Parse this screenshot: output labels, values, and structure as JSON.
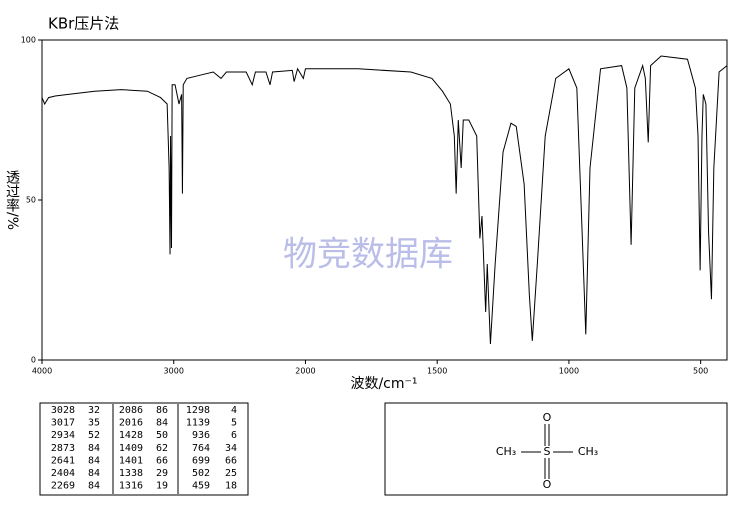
{
  "chart_data": {
    "type": "line",
    "title": "KBr压片法",
    "xlabel": "波数/cm⁻¹",
    "ylabel": "透过率/%",
    "watermark": "物竞数据库",
    "color": "#000000",
    "xlim": [
      4000,
      400
    ],
    "xticks": [
      4000,
      3000,
      2000,
      1500,
      1000,
      500
    ],
    "ylim": [
      0,
      100
    ],
    "yticks": [
      0,
      50,
      100
    ],
    "grid": false,
    "x": [
      4000,
      3980,
      3950,
      3900,
      3800,
      3600,
      3400,
      3200,
      3100,
      3050,
      3035,
      3028,
      3024,
      3017,
      3012,
      2990,
      2960,
      2940,
      2934,
      2928,
      2900,
      2800,
      2700,
      2641,
      2600,
      2450,
      2404,
      2380,
      2300,
      2269,
      2250,
      2100,
      2086,
      2060,
      2016,
      2000,
      1800,
      1600,
      1520,
      1480,
      1450,
      1435,
      1428,
      1420,
      1409,
      1401,
      1380,
      1350,
      1338,
      1330,
      1316,
      1310,
      1298,
      1280,
      1250,
      1220,
      1200,
      1170,
      1150,
      1139,
      1120,
      1090,
      1050,
      1000,
      970,
      950,
      936,
      920,
      880,
      800,
      780,
      764,
      750,
      720,
      710,
      699,
      690,
      650,
      550,
      520,
      510,
      502,
      495,
      490,
      480,
      470,
      459,
      450,
      430,
      400
    ],
    "values": [
      82,
      80,
      82,
      82.5,
      83,
      84,
      84.5,
      84,
      82,
      80,
      60,
      33,
      70,
      35,
      86,
      86,
      80,
      83,
      52,
      86,
      88,
      89,
      90,
      88,
      90,
      90,
      86,
      90,
      90,
      86,
      90,
      90.5,
      87,
      91,
      88,
      91,
      91,
      90,
      88,
      84,
      80,
      70,
      52,
      75,
      60,
      75,
      75,
      70,
      38,
      45,
      15,
      30,
      5,
      30,
      65,
      74,
      73,
      55,
      20,
      6,
      30,
      70,
      88,
      91,
      85,
      40,
      8,
      60,
      91,
      92,
      85,
      36,
      85,
      92,
      88,
      68,
      92,
      95,
      94,
      85,
      70,
      28,
      70,
      83,
      80,
      40,
      19,
      60,
      90,
      92
    ]
  },
  "peak_table": [
    [
      3028,
      32
    ],
    [
      3017,
      35
    ],
    [
      2934,
      52
    ],
    [
      2873,
      84
    ],
    [
      2641,
      84
    ],
    [
      2404,
      84
    ],
    [
      2269,
      84
    ],
    [
      2086,
      86
    ],
    [
      2016,
      84
    ],
    [
      1428,
      50
    ],
    [
      1409,
      62
    ],
    [
      1401,
      66
    ],
    [
      1338,
      29
    ],
    [
      1316,
      19
    ],
    [
      1298,
      4
    ],
    [
      1139,
      5
    ],
    [
      936,
      6
    ],
    [
      764,
      34
    ],
    [
      699,
      66
    ],
    [
      502,
      25
    ],
    [
      459,
      18
    ]
  ],
  "structure": {
    "atoms": [
      "CH₃",
      "S",
      "CH₃",
      "O",
      "O"
    ]
  }
}
